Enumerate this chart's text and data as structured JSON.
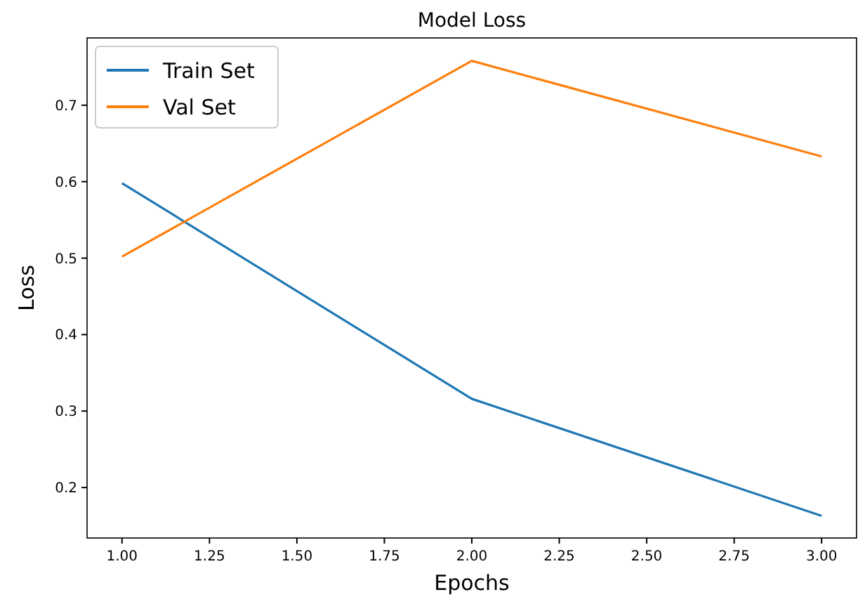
{
  "chart_data": {
    "type": "line",
    "title": "Model Loss",
    "xlabel": "Epochs",
    "ylabel": "Loss",
    "x": [
      1,
      2,
      3
    ],
    "series": [
      {
        "name": "Train Set",
        "color": "#1f77b4",
        "values": [
          0.598,
          0.316,
          0.163
        ]
      },
      {
        "name": "Val Set",
        "color": "#ff7f0e",
        "values": [
          0.502,
          0.758,
          0.633
        ]
      }
    ],
    "xlim": [
      0.9,
      3.1
    ],
    "xticks": [
      {
        "value": 1,
        "label": "1.00"
      },
      {
        "value": 1.25,
        "label": "1.25"
      },
      {
        "value": 1.5,
        "label": "1.50"
      },
      {
        "value": 1.75,
        "label": "1.75"
      },
      {
        "value": 2,
        "label": "2.00"
      },
      {
        "value": 2.25,
        "label": "2.25"
      },
      {
        "value": 2.5,
        "label": "2.50"
      },
      {
        "value": 2.75,
        "label": "2.75"
      },
      {
        "value": 3,
        "label": "3.00"
      }
    ],
    "ylim": [
      0.134,
      0.788
    ],
    "yticks": [
      0.2,
      0.3,
      0.4,
      0.5,
      0.6,
      0.7
    ],
    "legend": "top left",
    "grid": false,
    "marker": "none",
    "line_style": "solid"
  }
}
